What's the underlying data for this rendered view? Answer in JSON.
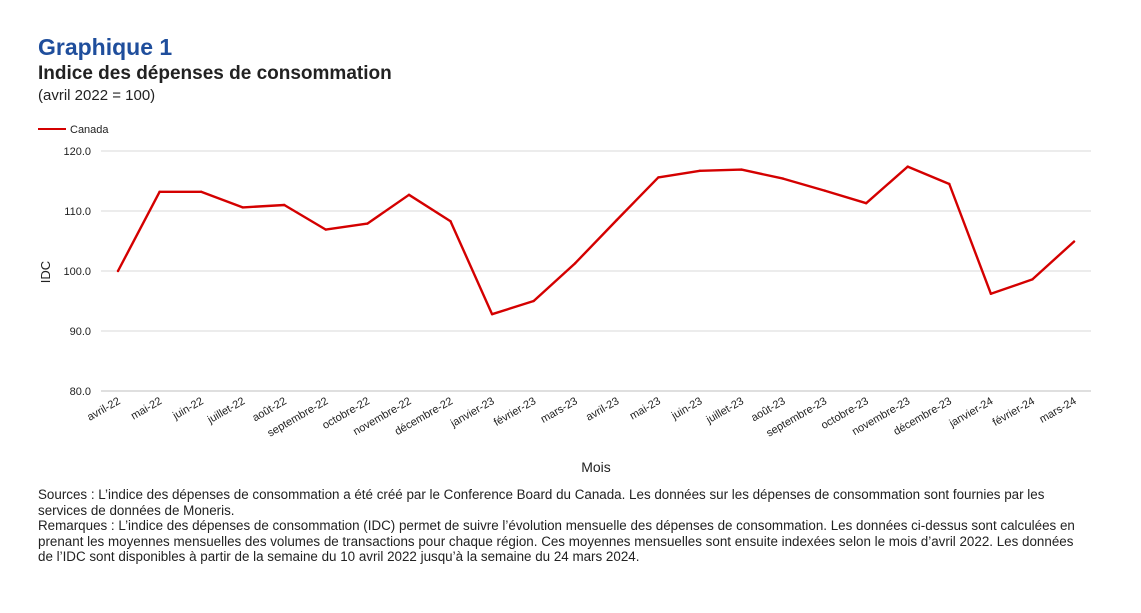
{
  "header": {
    "number": "Graphique 1",
    "title": "Indice des dépenses de consommation",
    "subtitle": "(avril 2022 = 100)"
  },
  "chart_data": {
    "type": "line",
    "xlabel": "Mois",
    "ylabel": "IDC",
    "ylim": [
      80,
      120
    ],
    "yticks": [
      "80.0",
      "90.0",
      "100.0",
      "110.0",
      "120.0"
    ],
    "grid": true,
    "legend_position": "top-left",
    "categories": [
      "avril-22",
      "mai-22",
      "juin-22",
      "juillet-22",
      "août-22",
      "septembre-22",
      "octobre-22",
      "novembre-22",
      "décembre-22",
      "janvier-23",
      "février-23",
      "mars-23",
      "avril-23",
      "mai-23",
      "juin-23",
      "juillet-23",
      "août-23",
      "septembre-23",
      "octobre-23",
      "novembre-23",
      "décembre-23",
      "janvier-24",
      "février-24",
      "mars-24"
    ],
    "series": [
      {
        "name": "Canada",
        "color": "#d40000",
        "values": [
          100.0,
          113.2,
          113.2,
          110.6,
          111.0,
          106.9,
          107.9,
          112.7,
          108.3,
          92.8,
          95.0,
          101.3,
          108.5,
          115.6,
          116.7,
          116.9,
          115.4,
          113.4,
          111.3,
          117.4,
          114.5,
          96.2,
          98.6,
          104.9
        ]
      }
    ]
  },
  "footer": {
    "sources": "Sources : L’indice des dépenses de consommation a été créé par le Conference Board du Canada. Les données sur les dépenses de consommation sont fournies par les services de données de Moneris.",
    "remarks": "Remarques : L’indice des dépenses de consommation (IDC) permet de suivre l’évolution mensuelle des dépenses de consommation. Les données ci-dessus sont calculées en prenant les moyennes mensuelles des volumes de transactions pour chaque région. Ces moyennes mensuelles sont ensuite indexées selon le mois d’avril 2022. Les données de l’IDC sont disponibles à partir de la semaine du 10 avril 2022 jusqu’à la semaine du 24 mars 2024."
  }
}
